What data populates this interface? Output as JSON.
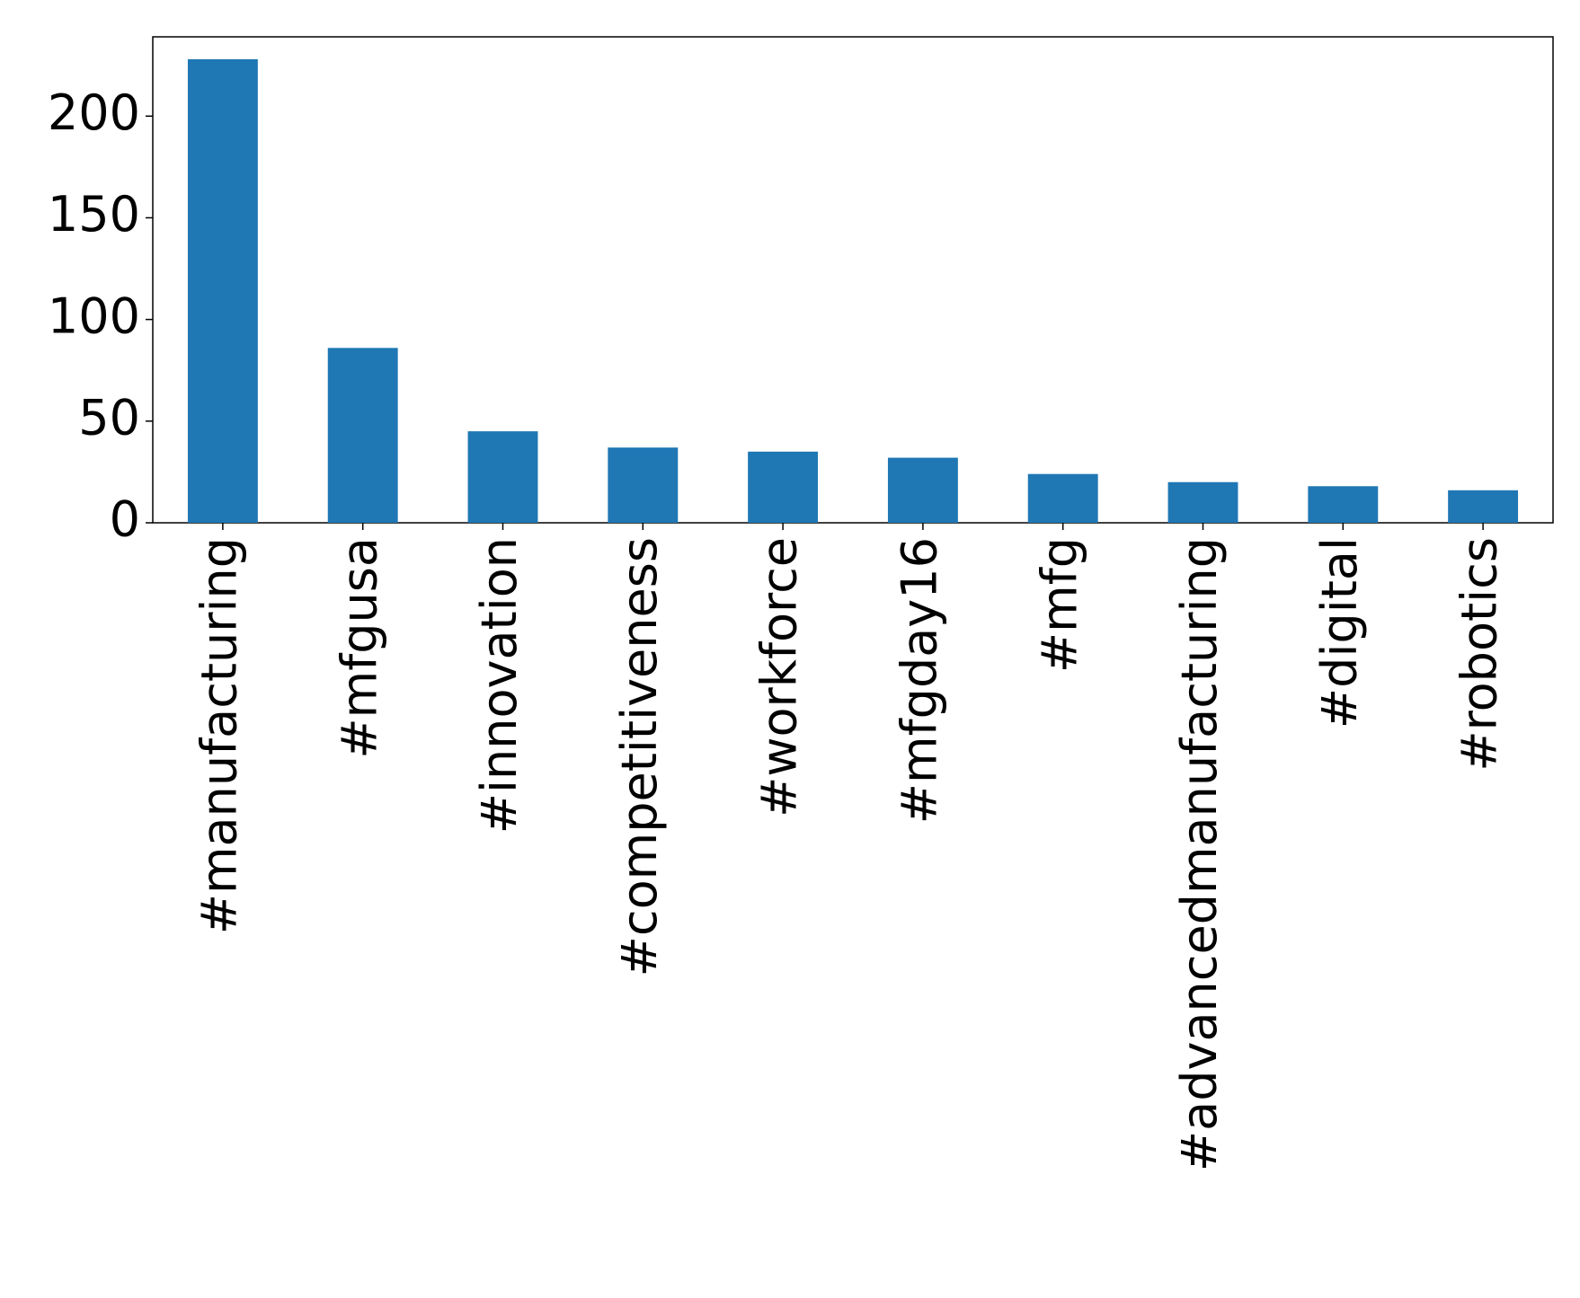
{
  "chart_data": {
    "type": "bar",
    "categories": [
      "#manufacturing",
      "#mfgusa",
      "#innovation",
      "#competitiveness",
      "#workforce",
      "#mfgday16",
      "#mfg",
      "#advancedmanufacturing",
      "#digital",
      "#robotics"
    ],
    "values": [
      228,
      86,
      45,
      37,
      35,
      32,
      24,
      20,
      18,
      16
    ],
    "color": "#1f77b4",
    "ylim": [
      0,
      239
    ],
    "yticks": [
      0,
      50,
      100,
      150,
      200
    ],
    "grid": false
  }
}
